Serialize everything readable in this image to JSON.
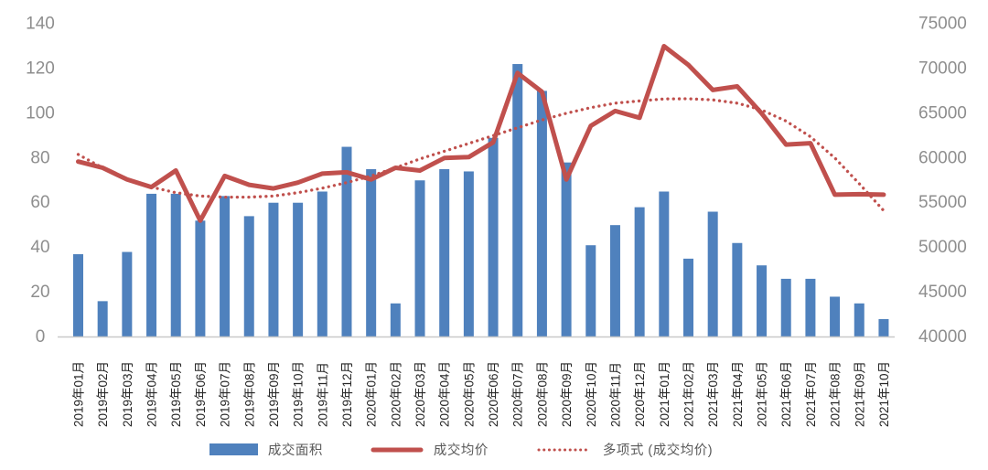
{
  "chart_data": {
    "type": "combo-bar-line",
    "title": "",
    "grid": false,
    "legend_position": "bottom",
    "categories": [
      "2019年01月",
      "2019年02月",
      "2019年03月",
      "2019年04月",
      "2019年05月",
      "2019年06月",
      "2019年07月",
      "2019年08月",
      "2019年09月",
      "2019年10月",
      "2019年11月",
      "2019年12月",
      "2020年01月",
      "2020年02月",
      "2020年03月",
      "2020年04月",
      "2020年05月",
      "2020年06月",
      "2020年07月",
      "2020年08月",
      "2020年09月",
      "2020年10月",
      "2020年11月",
      "2020年12月",
      "2021年01月",
      "2021年02月",
      "2021年03月",
      "2021年04月",
      "2021年05月",
      "2021年06月",
      "2021年07月",
      "2021年08月",
      "2021年09月",
      "2021年10月"
    ],
    "left_axis": {
      "min": 0,
      "max": 140,
      "step": 20,
      "tick_labels": [
        "0",
        "20",
        "40",
        "60",
        "80",
        "100",
        "120",
        "140"
      ]
    },
    "right_axis": {
      "min": 40000,
      "max": 75000,
      "step": 5000,
      "tick_labels": [
        "40000",
        "45000",
        "50000",
        "55000",
        "60000",
        "65000",
        "70000",
        "75000"
      ]
    },
    "series": [
      {
        "name": "成交面积",
        "type": "bar",
        "axis": "left",
        "color": "#4F81BD",
        "values": [
          37,
          16,
          38,
          64,
          64,
          52,
          63,
          54,
          60,
          60,
          65,
          85,
          75,
          15,
          70,
          75,
          74,
          89,
          122,
          110,
          78,
          41,
          50,
          58,
          65,
          35,
          56,
          42,
          32,
          26,
          26,
          18,
          15,
          8
        ]
      },
      {
        "name": "成交均价",
        "type": "line",
        "axis": "right",
        "color": "#C0504D",
        "values": [
          59600,
          58900,
          57600,
          56750,
          58600,
          53000,
          58000,
          57000,
          56600,
          57250,
          58250,
          58400,
          57600,
          58900,
          58600,
          60000,
          60100,
          61750,
          69500,
          67400,
          57600,
          63600,
          65250,
          64500,
          72500,
          70400,
          67600,
          68000,
          65000,
          61500,
          61650,
          55900,
          55950,
          55900
        ]
      },
      {
        "name": "多项式 (成交均价)",
        "type": "dotted-line",
        "axis": "right",
        "color": "#C0504D",
        "values": [
          60400,
          58900,
          57600,
          56750,
          56125,
          55750,
          55625,
          55625,
          55750,
          56125,
          56625,
          57250,
          58000,
          58900,
          59900,
          60750,
          61625,
          62500,
          63375,
          64250,
          65000,
          65625,
          66125,
          66375,
          66600,
          66625,
          66500,
          66125,
          65375,
          64125,
          62375,
          60000,
          57125,
          54125
        ]
      }
    ]
  },
  "colors": {
    "bar": "#4F81BD",
    "line": "#C0504D",
    "y_axis_labels": "#8E8E8E",
    "x_axis_labels": "#262626",
    "legend_text": "#595959",
    "axis_line": "#C9C9C9",
    "background": "#FFFFFF"
  }
}
